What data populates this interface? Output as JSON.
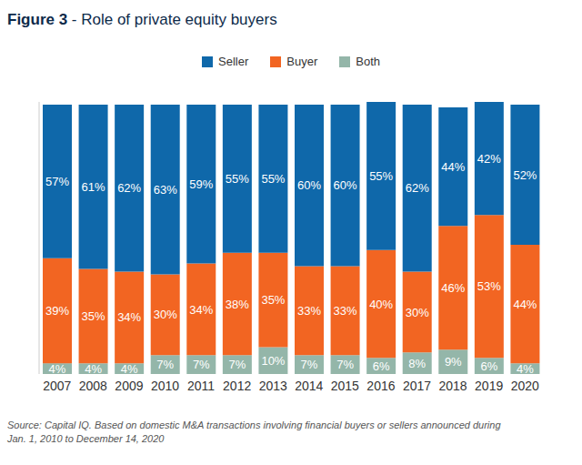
{
  "chart_data": {
    "type": "bar",
    "title": "Figure 3 - Role of private equity buyers",
    "categories": [
      "2007",
      "2008",
      "2009",
      "2010",
      "2011",
      "2012",
      "2013",
      "2014",
      "2015",
      "2016",
      "2017",
      "2018",
      "2019",
      "2020"
    ],
    "series": [
      {
        "name": "Seller",
        "color": "#0f68aa",
        "values": [
          57,
          61,
          62,
          63,
          59,
          55,
          55,
          60,
          60,
          55,
          62,
          44,
          42,
          52
        ],
        "value_labels": [
          "57%",
          "61%",
          "62%",
          "63%",
          "59%",
          "55%",
          "55%",
          "60%",
          "60%",
          "55%",
          "62%",
          "44%",
          "42%",
          "52%"
        ]
      },
      {
        "name": "Buyer",
        "color": "#f26522",
        "values": [
          39,
          35,
          34,
          30,
          34,
          38,
          35,
          33,
          33,
          40,
          30,
          46,
          53,
          44
        ],
        "value_labels": [
          "39%",
          "35%",
          "34%",
          "30%",
          "34%",
          "38%",
          "35%",
          "33%",
          "33%",
          "40%",
          "30%",
          "46%",
          "53%",
          "44%"
        ]
      },
      {
        "name": "Both",
        "color": "#94b6a9",
        "values": [
          4,
          4,
          4,
          7,
          7,
          7,
          10,
          7,
          7,
          6,
          8,
          9,
          6,
          4
        ],
        "value_labels": [
          "4%",
          "4%",
          "4%",
          "7%",
          "7%",
          "7%",
          "10%",
          "7%",
          "7%",
          "6%",
          "8%",
          "9%",
          "6%",
          "4%"
        ]
      }
    ],
    "ylim": [
      0,
      101
    ],
    "stacked": true,
    "data_labels": true,
    "tick_labels": "x",
    "legend": "top",
    "annotations": [
      "Source: Capital IQ. Based on domestic M&A transactions involving financial buyers or sellers announced during",
      "Jan. 1, 2010 to December 14, 2020"
    ]
  }
}
